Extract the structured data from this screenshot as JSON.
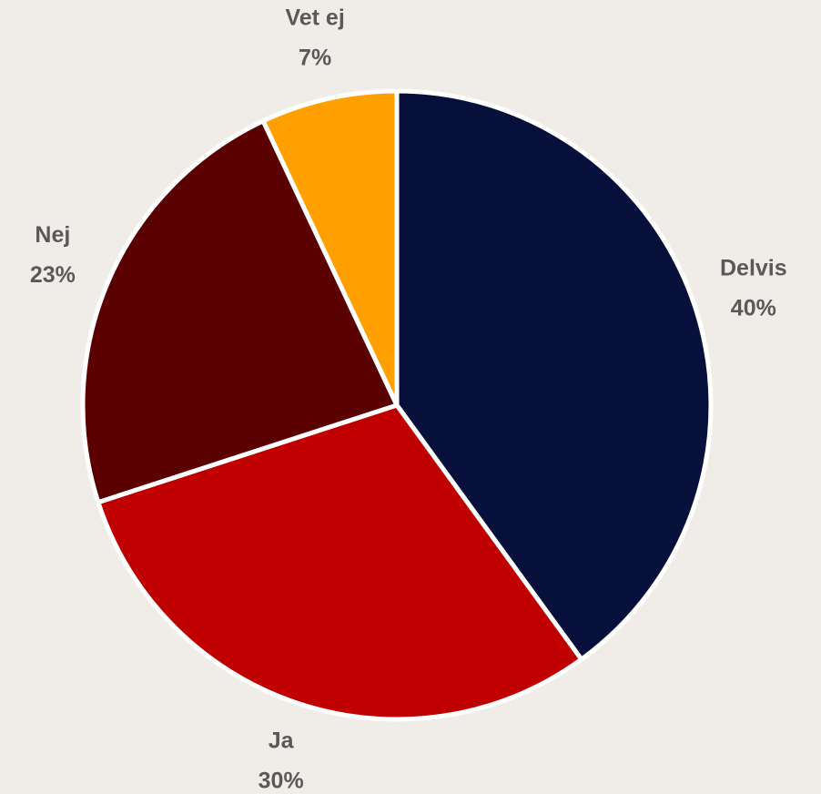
{
  "chart_data": {
    "type": "pie",
    "categories": [
      "Delvis",
      "Ja",
      "Nej",
      "Vet ej"
    ],
    "values": [
      40,
      30,
      23,
      7
    ],
    "value_labels": [
      "40%",
      "30%",
      "23%",
      "7%"
    ],
    "colors": [
      "#06103a",
      "#c00000",
      "#5a0000",
      "#ffa000"
    ]
  }
}
